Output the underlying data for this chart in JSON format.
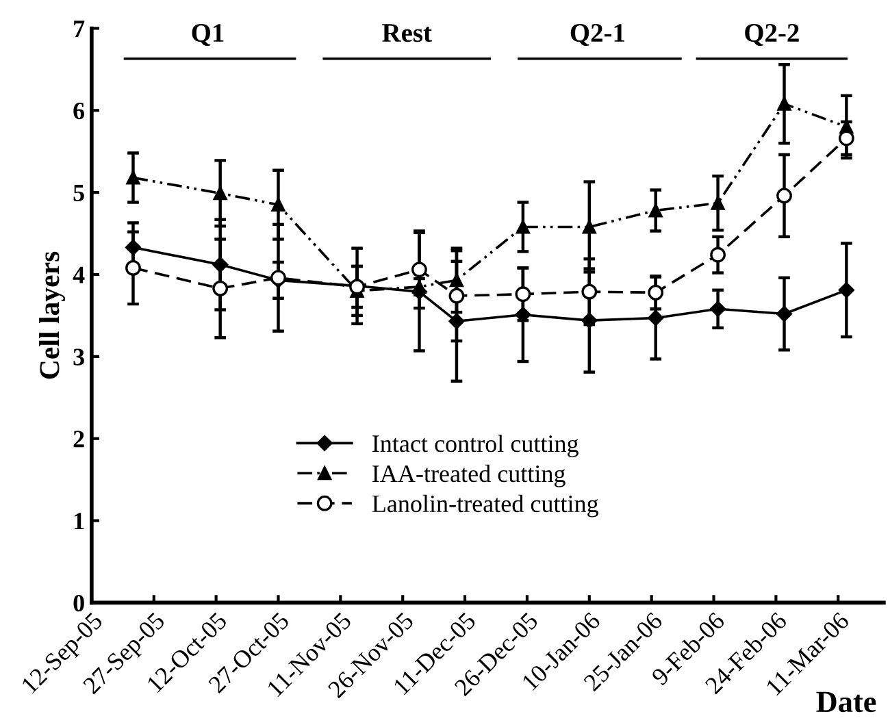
{
  "chart_data": {
    "type": "line",
    "xlabel": "Date",
    "ylabel": "Cell layers",
    "x": [
      "2005-09-22",
      "2005-10-13",
      "2005-10-27",
      "2005-11-15",
      "2005-11-30",
      "2005-12-09",
      "2005-12-25",
      "2006-01-10",
      "2006-01-26",
      "2006-02-10",
      "2006-02-26",
      "2006-03-13"
    ],
    "series": [
      {
        "name": "Intact control cutting",
        "color": "#000000",
        "marker": "diamond",
        "line_style": "solid",
        "values": [
          4.33,
          4.12,
          3.93,
          3.86,
          3.79,
          3.43,
          3.51,
          3.44,
          3.47,
          3.58,
          3.52,
          3.81
        ],
        "errors": [
          0.3,
          0.55,
          0.22,
          0.46,
          0.72,
          0.73,
          0.57,
          0.63,
          0.5,
          0.23,
          0.44,
          0.57
        ]
      },
      {
        "name": "IAA-treated cutting",
        "color": "#000000",
        "marker": "triangle",
        "line_style": "dashdot",
        "values": [
          5.18,
          4.99,
          4.85,
          3.8,
          3.85,
          3.93,
          4.58,
          4.58,
          4.78,
          4.87,
          6.08,
          5.8
        ],
        "errors": [
          0.3,
          0.4,
          0.42,
          0.3,
          0.1,
          0.39,
          0.3,
          0.55,
          0.25,
          0.33,
          0.48,
          0.38
        ]
      },
      {
        "name": "Lanolin-treated cutting",
        "color": "#000000",
        "marker": "circle",
        "line_style": "dashed",
        "values": [
          4.08,
          3.83,
          3.96,
          3.85,
          4.06,
          3.74,
          3.76,
          3.79,
          3.78,
          4.24,
          4.96,
          5.66
        ],
        "errors": [
          0.44,
          0.6,
          0.65,
          0.25,
          0.47,
          0.55,
          0.32,
          0.4,
          0.2,
          0.22,
          0.5,
          0.2
        ]
      },
      {
        "color": "#000000",
        "marker": "none",
        "line_style": "solid",
        "x": [
          "2005-09-20",
          "2005-10-31"
        ],
        "values": [
          6.63,
          6.63
        ]
      },
      {
        "color": "#000000",
        "marker": "none",
        "line_style": "solid",
        "x": [
          "2005-11-07",
          "2005-12-17"
        ],
        "values": [
          6.63,
          6.63
        ]
      },
      {
        "color": "#000000",
        "marker": "none",
        "line_style": "solid",
        "x": [
          "2005-12-24",
          "2006-02-01"
        ],
        "values": [
          6.63,
          6.63
        ]
      },
      {
        "color": "#000000",
        "marker": "none",
        "line_style": "solid",
        "x": [
          "2006-02-05",
          "2006-03-13"
        ],
        "values": [
          6.63,
          6.63
        ]
      }
    ],
    "xlim": [
      "2005-09-12",
      "2006-03-22"
    ],
    "xticks": [
      {
        "value": "2005-09-12",
        "label": "12-Sep-05"
      },
      {
        "value": "2005-09-27",
        "label": "27-Sep-05"
      },
      {
        "value": "2005-10-12",
        "label": "12-Oct-05"
      },
      {
        "value": "2005-10-27",
        "label": "27-Oct-05"
      },
      {
        "value": "2005-11-11",
        "label": "11-Nov-05"
      },
      {
        "value": "2005-11-26",
        "label": "26-Nov-05"
      },
      {
        "value": "2005-12-11",
        "label": "11-Dec-05"
      },
      {
        "value": "2005-12-26",
        "label": "26-Dec-05"
      },
      {
        "value": "2006-01-10",
        "label": "10-Jan-06"
      },
      {
        "value": "2006-01-25",
        "label": "25-Jan-06"
      },
      {
        "value": "2006-02-09",
        "label": "9-Feb-06"
      },
      {
        "value": "2006-02-24",
        "label": "24-Feb-06"
      },
      {
        "value": "2006-03-11",
        "label": "11-Mar-06"
      }
    ],
    "ylim": [
      0,
      7
    ],
    "yticks": [
      0,
      1,
      2,
      3,
      4,
      5,
      6,
      7
    ],
    "annotations": [
      {
        "text": "Q1",
        "x": "2005-10-10",
        "y": 6.63
      },
      {
        "text": "Rest",
        "x": "2005-11-27",
        "y": 6.63
      },
      {
        "text": "Q2-1",
        "x": "2006-01-12",
        "y": 6.63
      },
      {
        "text": "Q2-2",
        "x": "2006-02-23",
        "y": 6.63
      }
    ],
    "grid": false,
    "legend": "bottom"
  }
}
